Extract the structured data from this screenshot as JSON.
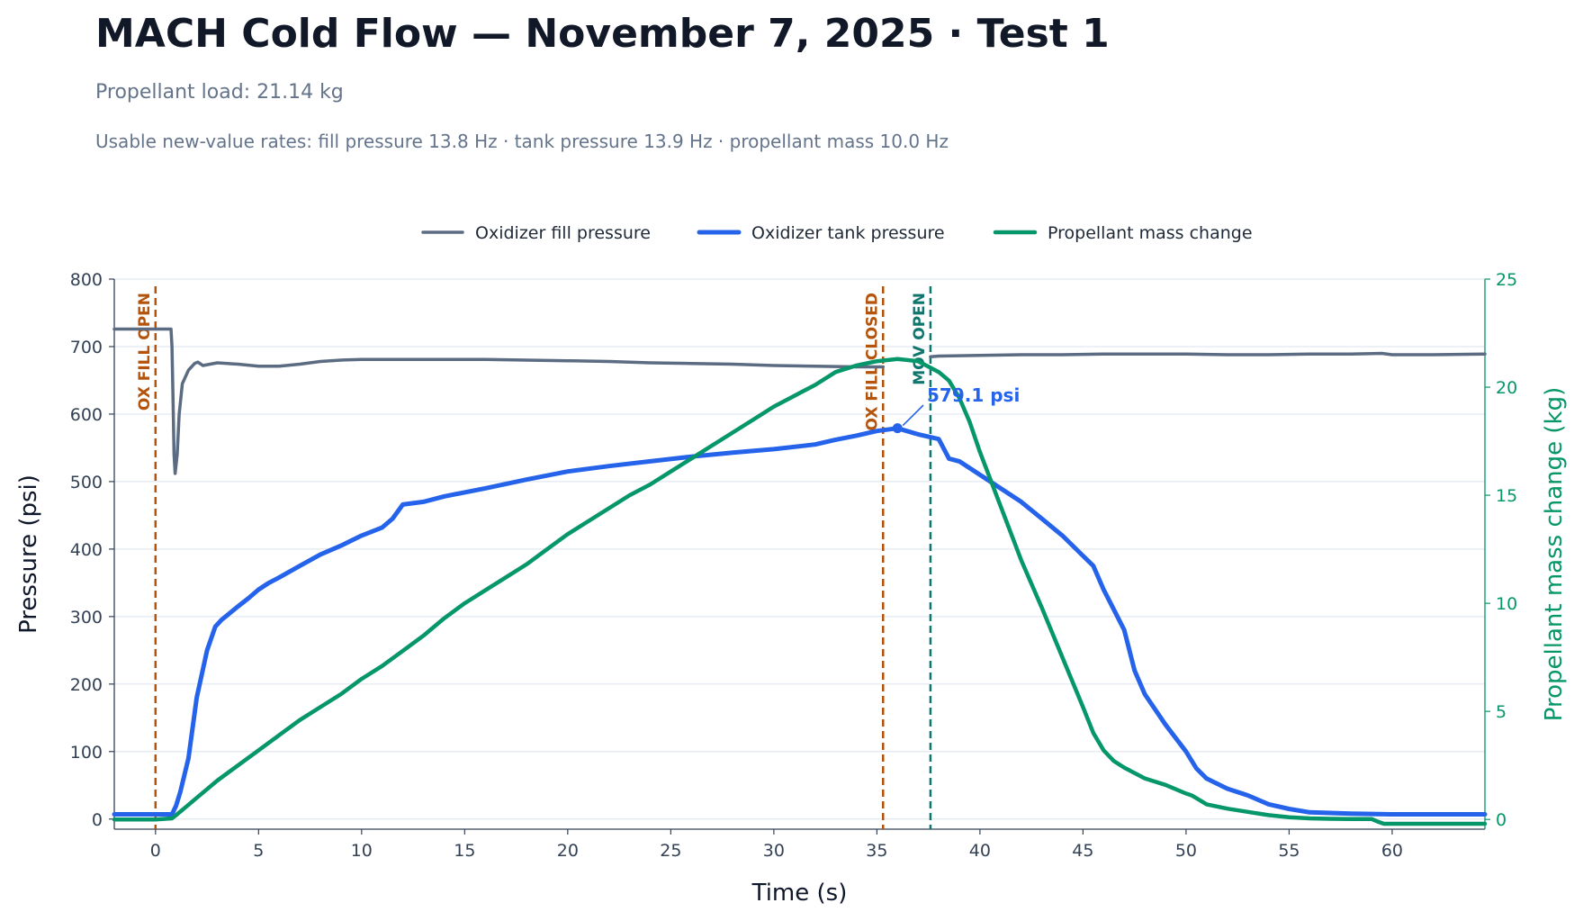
{
  "title": "MACH Cold Flow — November 7, 2025 · Test 1",
  "subtitle": "Propellant load: 21.14 kg",
  "rates_text": "Usable new-value rates: fill pressure 13.8 Hz · tank pressure 13.9 Hz · propellant mass 10.0 Hz",
  "chart_data": {
    "type": "line",
    "title": "MACH Cold Flow — November 7, 2025 · Test 1",
    "xlabel": "Time (s)",
    "ylabel": "Pressure (psi)",
    "y2label": "Propellant mass change (kg)",
    "xlim": [
      -2,
      64.5
    ],
    "ylim": [
      -15,
      800
    ],
    "y2lim": [
      -0.45,
      25
    ],
    "xticks": [
      0,
      5,
      10,
      15,
      20,
      25,
      30,
      35,
      40,
      45,
      50,
      55,
      60
    ],
    "yticks": [
      0,
      100,
      200,
      300,
      400,
      500,
      600,
      700,
      800
    ],
    "y2ticks": [
      0,
      5,
      10,
      15,
      20,
      25
    ],
    "grid": true,
    "legend_position": "top-center",
    "colors": {
      "fill": "#5b6b82",
      "tank": "#2563eb",
      "mass": "#059669",
      "ox_event": "#b45309",
      "mov_event": "#0f766e",
      "axis": "#334155",
      "grid": "#e2e8f0"
    },
    "series": [
      {
        "name": "Oxidizer fill pressure",
        "axis": "left",
        "x": [
          -2,
          0,
          0.75,
          0.8,
          0.85,
          0.9,
          0.95,
          1.05,
          1.15,
          1.3,
          1.6,
          1.9,
          2.05,
          2.3,
          3,
          4,
          5,
          6,
          7,
          8,
          9,
          10,
          12,
          14,
          16,
          18,
          20,
          22,
          24,
          26,
          28,
          30,
          32,
          34,
          35.3,
          37.6,
          38,
          40,
          42,
          44,
          46,
          48,
          50,
          52,
          54,
          56,
          58,
          59.5,
          60,
          62,
          64.5
        ],
        "y": [
          726,
          726,
          726,
          700,
          620,
          540,
          512,
          540,
          600,
          645,
          665,
          675,
          677,
          672,
          676,
          674,
          671,
          671,
          674,
          678,
          680,
          681,
          681,
          681,
          681,
          680,
          679,
          678,
          676,
          675,
          674,
          672,
          671,
          670,
          670,
          685,
          686,
          687,
          688,
          688,
          689,
          689,
          689,
          688,
          688,
          689,
          689,
          690,
          688,
          688,
          689
        ]
      },
      {
        "name": "Oxidizer tank pressure",
        "axis": "left",
        "x": [
          -2,
          0,
          0.8,
          1,
          1.2,
          1.6,
          2,
          2.5,
          2.9,
          3.2,
          3.6,
          4,
          4.5,
          5,
          5.5,
          6,
          7,
          8,
          9,
          10,
          11,
          11.5,
          12,
          13,
          14,
          16,
          18,
          20,
          22,
          24,
          26,
          28,
          30,
          32,
          33,
          34,
          35,
          36,
          37,
          38,
          38.5,
          39,
          40,
          41,
          42,
          43,
          44,
          45,
          45.5,
          46,
          46.5,
          47,
          47.5,
          48,
          49,
          50,
          50.5,
          51,
          52,
          53,
          54,
          55,
          56,
          58,
          60,
          62,
          64.5
        ],
        "y": [
          7,
          7,
          7,
          20,
          40,
          90,
          180,
          250,
          285,
          295,
          305,
          315,
          327,
          340,
          350,
          358,
          375,
          392,
          405,
          420,
          432,
          445,
          466,
          470,
          478,
          490,
          503,
          515,
          523,
          530,
          537,
          543,
          548,
          555,
          562,
          568,
          575,
          579,
          570,
          563,
          534,
          530,
          510,
          490,
          470,
          445,
          420,
          390,
          375,
          340,
          310,
          280,
          220,
          185,
          140,
          100,
          75,
          60,
          45,
          35,
          22,
          15,
          10,
          8,
          7,
          7,
          7
        ]
      },
      {
        "name": "Propellant mass change",
        "axis": "right",
        "x": [
          -2,
          0,
          0.8,
          1,
          1.5,
          2,
          3,
          4,
          5,
          6,
          7,
          8,
          9,
          10,
          11,
          12,
          13,
          14,
          15,
          16,
          17,
          18,
          19,
          20,
          21,
          22,
          23,
          24,
          25,
          26,
          27,
          28,
          29,
          30,
          31,
          32,
          33,
          34,
          35,
          36,
          37,
          38,
          38.5,
          39,
          39.5,
          40,
          41,
          42,
          43,
          44,
          45,
          45.5,
          46,
          46.5,
          47,
          48,
          49,
          50,
          50.3,
          51,
          52,
          53,
          54,
          55,
          56,
          57,
          58,
          59,
          59.3,
          59.6,
          60,
          62,
          64.5
        ],
        "y": [
          0,
          0,
          0.05,
          0.2,
          0.6,
          1,
          1.8,
          2.5,
          3.2,
          3.9,
          4.6,
          5.2,
          5.8,
          6.5,
          7.1,
          7.8,
          8.5,
          9.3,
          10,
          10.6,
          11.2,
          11.8,
          12.5,
          13.2,
          13.8,
          14.4,
          15,
          15.5,
          16.1,
          16.7,
          17.3,
          17.9,
          18.5,
          19.1,
          19.6,
          20.1,
          20.7,
          21.0,
          21.2,
          21.3,
          21.2,
          20.7,
          20.3,
          19.5,
          18.4,
          17,
          14.5,
          12,
          9.8,
          7.5,
          5.2,
          4.0,
          3.2,
          2.7,
          2.4,
          1.9,
          1.6,
          1.2,
          1.1,
          0.7,
          0.5,
          0.35,
          0.2,
          0.1,
          0.05,
          0.03,
          0.02,
          0.02,
          -0.1,
          -0.2,
          -0.2,
          -0.2,
          -0.2
        ]
      }
    ],
    "events": [
      {
        "label": "OX FILL OPEN",
        "x": 0
      },
      {
        "label": "OX FILL CLOSED",
        "x": 35.3
      },
      {
        "label": "MOV OPEN",
        "x": 37.6
      }
    ],
    "annotation": {
      "label": "579.1 psi",
      "x": 36,
      "y": 579.1
    }
  }
}
